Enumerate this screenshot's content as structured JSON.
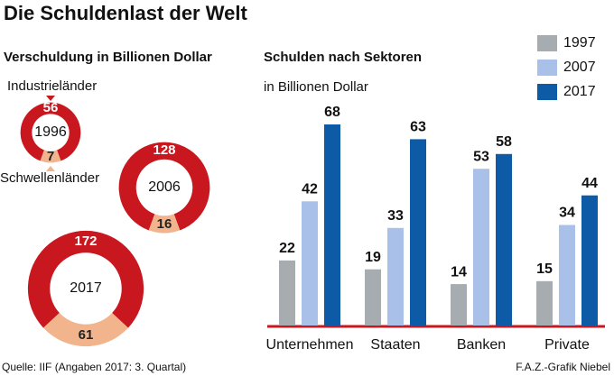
{
  "title": "Die Schuldenlast der Welt",
  "source": "Quelle: IIF (Angaben 2017: 3. Quartal)",
  "credit": "F.A.Z.-Grafik Niebel",
  "chart_data": [
    {
      "type": "donut",
      "title": "Verschuldung in Billionen Dollar",
      "categories": [
        "Industrieländer",
        "Schwellenländer"
      ],
      "colors": [
        "#c8171e",
        "#f2b48c"
      ],
      "series": [
        {
          "name": "1996",
          "values": [
            56,
            7
          ]
        },
        {
          "name": "2006",
          "values": [
            128,
            16
          ]
        },
        {
          "name": "2017",
          "values": [
            172,
            61
          ]
        }
      ]
    },
    {
      "type": "bar",
      "title": "Schulden nach Sektoren",
      "subtitle": "in Billionen Dollar",
      "categories": [
        "Unternehmen",
        "Staaten",
        "Banken",
        "Private"
      ],
      "series": [
        {
          "name": "1997",
          "color": "#a7acb1",
          "values": [
            22,
            19,
            14,
            15
          ]
        },
        {
          "name": "2007",
          "color": "#a9c1e8",
          "values": [
            42,
            33,
            53,
            34
          ]
        },
        {
          "name": "2017",
          "color": "#0d5aa7",
          "values": [
            68,
            63,
            58,
            44
          ]
        }
      ]
    }
  ]
}
